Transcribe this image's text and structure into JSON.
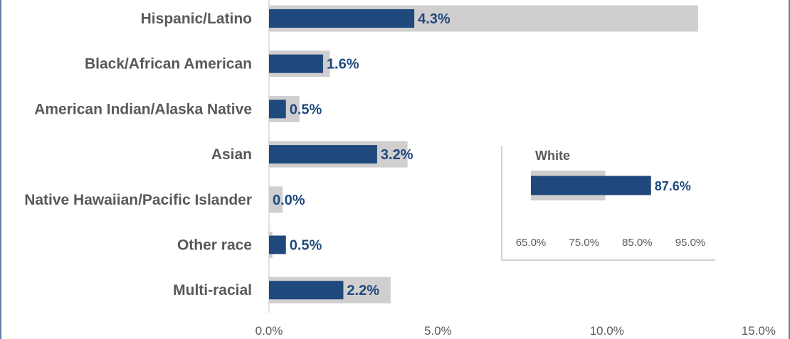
{
  "chart_data": [
    {
      "type": "bar",
      "orientation": "horizontal",
      "categories": [
        "Hispanic/Latino",
        "Black/African American",
        "American Indian/Alaska Native",
        "Asian",
        "Native Hawaiian/Pacific Islander",
        "Other race",
        "Multi-racial"
      ],
      "series": [
        {
          "values": [
            12.7,
            1.8,
            0.9,
            4.1,
            0.4,
            0.1,
            3.6
          ],
          "color": "#d0cece",
          "data_labels": false
        },
        {
          "values": [
            4.3,
            1.6,
            0.5,
            3.2,
            0.0,
            0.5,
            2.2
          ],
          "color": "#1f497d",
          "labels": [
            "4.3%",
            "1.6%",
            "0.5%",
            "3.2%",
            "0.0%",
            "0.5%",
            "2.2%"
          ],
          "data_labels": true
        }
      ],
      "xlim": [
        0,
        15
      ],
      "ticks": [
        0,
        5,
        10,
        15
      ],
      "tick_labels": [
        "0.0%",
        "5.0%",
        "10.0%",
        "15.0%"
      ],
      "grid": false
    },
    {
      "type": "bar",
      "orientation": "horizontal",
      "title": "White",
      "categories": [
        "White"
      ],
      "series": [
        {
          "values": [
            79.0
          ],
          "color": "#d0cece",
          "data_labels": false
        },
        {
          "values": [
            87.6
          ],
          "color": "#1f497d",
          "labels": [
            "87.6%"
          ],
          "data_labels": true
        }
      ],
      "xlim": [
        65,
        95
      ],
      "ticks": [
        65,
        75,
        85,
        95
      ],
      "tick_labels": [
        "65.0%",
        "75.0%",
        "85.0%",
        "95.0%"
      ],
      "grid": false
    }
  ]
}
